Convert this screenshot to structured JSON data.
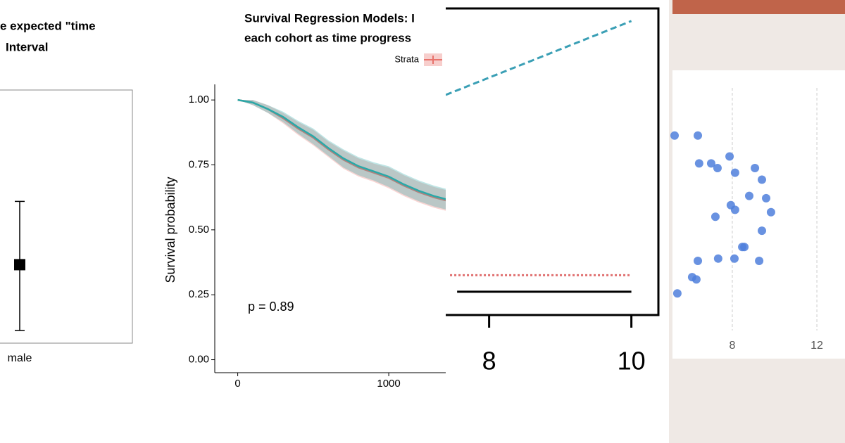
{
  "chart_data": [
    {
      "type": "errorbar",
      "title": [
        "e expected \"time",
        "Interval"
      ],
      "categories": [
        "male"
      ],
      "values": [
        0.31
      ],
      "lower": [
        0.05
      ],
      "upper": [
        0.56
      ],
      "ylim": [
        0,
        1
      ],
      "color": "#000000"
    },
    {
      "type": "line",
      "title": [
        "Survival Regression Models: I",
        "each cohort as time progress"
      ],
      "legend_title": "Strata",
      "ylabel": "Survival probability",
      "annotation": "p = 0.89",
      "xlim": [
        -152,
        1410
      ],
      "ylim": [
        -0.05,
        1.06
      ],
      "xticks": [
        0,
        1000
      ],
      "yticks": [
        {
          "value": 1,
          "label": "1.00"
        },
        {
          "value": 0.75,
          "label": "0.75"
        },
        {
          "value": 0.5,
          "label": "0.50"
        },
        {
          "value": 0.25,
          "label": "0.25"
        },
        {
          "value": 0,
          "label": "0.00"
        }
      ],
      "x": [
        0,
        100,
        200,
        300,
        400,
        500,
        600,
        700,
        800,
        900,
        1000,
        1100,
        1200,
        1300,
        1400
      ],
      "series": [
        {
          "color": "#e8736c",
          "values": [
            1,
            0.99,
            0.965,
            0.93,
            0.89,
            0.855,
            0.81,
            0.77,
            0.74,
            0.72,
            0.7,
            0.67,
            0.645,
            0.625,
            0.61
          ],
          "lower": [
            1,
            0.98,
            0.95,
            0.91,
            0.865,
            0.825,
            0.78,
            0.735,
            0.705,
            0.685,
            0.66,
            0.63,
            0.605,
            0.585,
            0.57
          ],
          "upper": [
            1,
            1.0,
            0.98,
            0.95,
            0.915,
            0.885,
            0.84,
            0.805,
            0.775,
            0.755,
            0.74,
            0.71,
            0.685,
            0.665,
            0.65
          ]
        },
        {
          "color": "#2aa8a8",
          "values": [
            1,
            0.99,
            0.965,
            0.935,
            0.895,
            0.86,
            0.815,
            0.775,
            0.745,
            0.725,
            0.705,
            0.675,
            0.65,
            0.63,
            0.615
          ],
          "lower": [
            1,
            0.98,
            0.95,
            0.915,
            0.87,
            0.83,
            0.785,
            0.74,
            0.71,
            0.69,
            0.665,
            0.635,
            0.61,
            0.59,
            0.575
          ],
          "upper": [
            1,
            1.0,
            0.98,
            0.955,
            0.92,
            0.89,
            0.845,
            0.81,
            0.78,
            0.76,
            0.745,
            0.715,
            0.69,
            0.67,
            0.655
          ]
        }
      ]
    },
    {
      "type": "line",
      "xlim": [
        7.39,
        10.38
      ],
      "ylim": [
        0,
        1
      ],
      "xticks": [
        8,
        10
      ],
      "series": [
        {
          "color": "#3a9fb5",
          "style": "dashed",
          "x": [
            7.39,
            10
          ],
          "values": [
            0.718,
            0.959
          ]
        },
        {
          "color": "#e07070",
          "style": "dotted",
          "x": [
            7.45,
            10
          ],
          "values": [
            0.13,
            0.13
          ]
        },
        {
          "color": "#000000",
          "style": "solid",
          "x": [
            7.55,
            10
          ],
          "values": [
            0.076,
            0.076
          ]
        }
      ]
    },
    {
      "type": "scatter",
      "xlim": [
        5.17,
        13.33
      ],
      "ylim": [
        0,
        1
      ],
      "xticks": [
        8,
        12
      ],
      "grid": true,
      "color": "#4f7fdc",
      "x": [
        5.27,
        6.37,
        6.43,
        7.0,
        7.3,
        7.87,
        8.13,
        9.07,
        9.4,
        9.6,
        8.8,
        7.93,
        8.13,
        9.83,
        7.2,
        9.4,
        8.57,
        8.47,
        6.37,
        7.33,
        8.1,
        9.27,
        6.1,
        6.3,
        5.4
      ],
      "values": [
        0.84,
        0.84,
        0.72,
        0.72,
        0.7,
        0.75,
        0.68,
        0.7,
        0.65,
        0.57,
        0.58,
        0.54,
        0.52,
        0.51,
        0.49,
        0.43,
        0.36,
        0.36,
        0.3,
        0.31,
        0.31,
        0.3,
        0.23,
        0.22,
        0.16
      ]
    }
  ]
}
